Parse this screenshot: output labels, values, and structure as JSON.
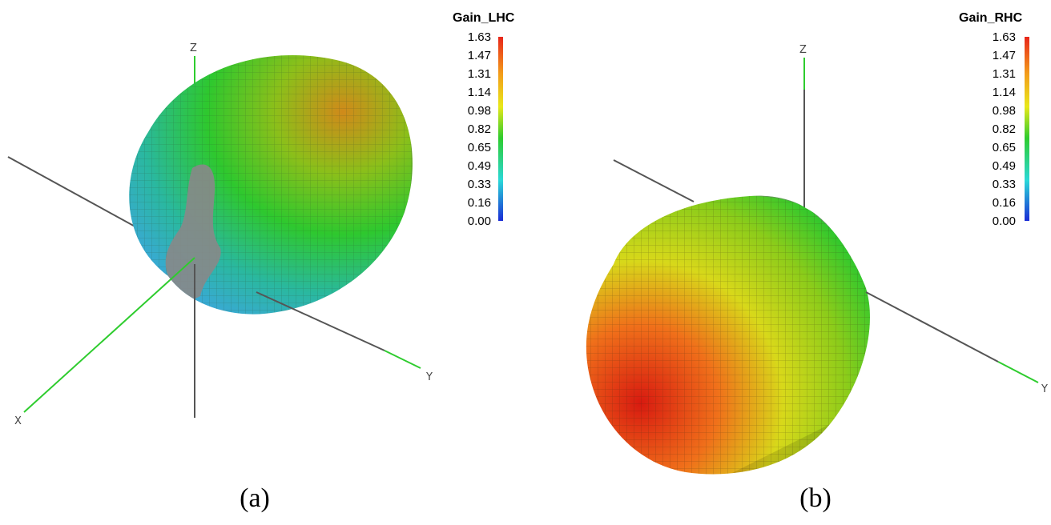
{
  "panels": [
    {
      "id": "a",
      "caption": "(a)",
      "legend_title": "Gain_LHC",
      "legend_ticks": [
        "1.63",
        "1.47",
        "1.31",
        "1.14",
        "0.98",
        "0.82",
        "0.65",
        "0.49",
        "0.33",
        "0.16",
        "0.00"
      ],
      "axes": {
        "x": "X",
        "y": "Y",
        "z": "Z"
      }
    },
    {
      "id": "b",
      "caption": "(b)",
      "legend_title": "Gain_RHC",
      "legend_ticks": [
        "1.63",
        "1.47",
        "1.31",
        "1.14",
        "0.98",
        "0.82",
        "0.65",
        "0.49",
        "0.33",
        "0.16",
        "0.00"
      ],
      "axes": {
        "x": "",
        "y": "Y",
        "z": "Z"
      }
    }
  ],
  "colors": {
    "axis_gray": "#555555",
    "axis_green": "#2ecc2e",
    "scale_top": "#e8261a",
    "scale_bottom": "#1a2bd6"
  }
}
